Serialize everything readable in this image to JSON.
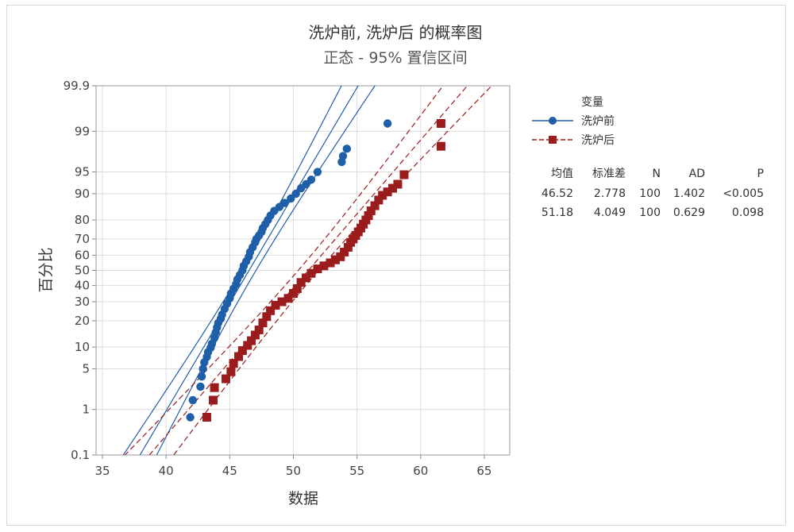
{
  "chart_data": {
    "type": "scatter",
    "title": "洗炉前, 洗炉后 的概率图",
    "subtitle": "正态 - 95% 置信区间",
    "xlabel": "数据",
    "ylabel": "百分比",
    "x_ticks": [
      35,
      40,
      45,
      50,
      55,
      60,
      65
    ],
    "xlim": [
      34.5,
      67
    ],
    "y_scale": "normal-probability",
    "y_ticks": [
      "0.1",
      "1",
      "5",
      "10",
      "20",
      "30",
      "40",
      "50",
      "60",
      "70",
      "80",
      "90",
      "95",
      "99",
      "99.9"
    ],
    "ylim": [
      0.1,
      99.9
    ],
    "grid": true,
    "legend_position": "right",
    "legend_title": "变量",
    "series": [
      {
        "name": "洗炉前",
        "color": "#1f5fa8",
        "marker": "circle",
        "mean": 46.52,
        "stdev": 2.778,
        "n": 100,
        "ad": 1.402,
        "p": "<0.005",
        "x": [
          41.9,
          42.1,
          42.7,
          42.8,
          42.9,
          43.0,
          43.2,
          43.3,
          43.5,
          43.6,
          43.8,
          43.9,
          44.0,
          44.1,
          44.3,
          44.4,
          44.6,
          44.8,
          45.0,
          45.1,
          45.3,
          45.5,
          45.6,
          45.8,
          46.0,
          46.1,
          46.3,
          46.5,
          46.6,
          46.8,
          47.0,
          47.1,
          47.3,
          47.5,
          47.6,
          47.8,
          48.0,
          48.2,
          48.5,
          48.9,
          49.3,
          49.8,
          50.2,
          50.6,
          51.0,
          51.4,
          51.9,
          53.8,
          53.9,
          54.2,
          57.4
        ],
        "y": [
          0.7,
          1.5,
          2.6,
          3.8,
          5.0,
          6.2,
          7.4,
          8.6,
          9.8,
          11.0,
          13.0,
          15.0,
          17.0,
          19.0,
          21.0,
          23.0,
          26.0,
          29.0,
          32.0,
          35.0,
          38.0,
          41.0,
          44.0,
          47.0,
          50.0,
          53.0,
          56.0,
          59.0,
          62.0,
          65.0,
          68.0,
          70.0,
          72.0,
          74.0,
          76.0,
          78.0,
          80.0,
          82.0,
          84.0,
          85.5,
          87.0,
          88.5,
          90.0,
          91.5,
          92.5,
          93.5,
          95.0,
          96.5,
          97.2,
          97.9,
          99.3
        ]
      },
      {
        "name": "洗炉后",
        "color": "#9b1c1c",
        "marker": "square",
        "mean": 51.18,
        "stdev": 4.049,
        "n": 100,
        "ad": 0.629,
        "p": "0.098",
        "x": [
          43.2,
          43.7,
          43.8,
          44.7,
          45.1,
          45.3,
          45.7,
          46.0,
          46.4,
          46.7,
          47.0,
          47.3,
          47.6,
          47.9,
          48.2,
          48.6,
          49.1,
          49.6,
          50.0,
          50.3,
          50.6,
          51.0,
          51.4,
          51.9,
          52.4,
          52.9,
          53.3,
          53.7,
          54.0,
          54.3,
          54.5,
          54.7,
          54.9,
          55.1,
          55.3,
          55.5,
          55.7,
          55.9,
          56.1,
          56.4,
          56.7,
          57.0,
          57.4,
          57.8,
          58.2,
          58.7,
          61.6,
          61.6
        ],
        "y": [
          0.7,
          1.5,
          2.5,
          3.5,
          4.5,
          6.0,
          7.5,
          9.0,
          10.5,
          12.0,
          14.0,
          16.0,
          19.0,
          22.0,
          25.0,
          28.0,
          30.0,
          32.0,
          35.0,
          38.0,
          42.0,
          45.0,
          48.0,
          51.0,
          53.0,
          55.0,
          57.0,
          59.0,
          62.0,
          65.0,
          68.0,
          70.0,
          72.0,
          74.0,
          76.0,
          78.0,
          80.0,
          82.0,
          84.0,
          86.0,
          88.0,
          89.5,
          90.5,
          91.5,
          92.5,
          94.5,
          98.1,
          99.3
        ]
      }
    ],
    "stats_headers": [
      "均值",
      "标准差",
      "N",
      "AD",
      "P"
    ],
    "stats_rows": [
      [
        "46.52",
        "2.778",
        "100",
        "1.402",
        "<0.005"
      ],
      [
        "51.18",
        "4.049",
        "100",
        "0.629",
        "0.098"
      ]
    ]
  }
}
